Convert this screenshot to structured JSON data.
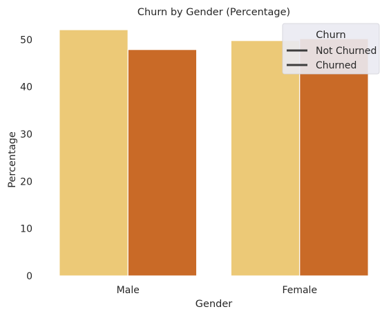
{
  "chart_data": {
    "type": "bar",
    "title": "Churn by Gender (Percentage)",
    "xlabel": "Gender",
    "ylabel": "Percentage",
    "categories": [
      "Male",
      "Female"
    ],
    "ylim": [
      0,
      54
    ],
    "yticks": [
      0,
      10,
      20,
      30,
      40,
      50
    ],
    "grid": false,
    "legend_title": "Churn",
    "legend_position": "top-right",
    "series": [
      {
        "name": "Not Churned",
        "values": [
          52.1,
          49.8
        ],
        "color": "#ecc977"
      },
      {
        "name": "Churned",
        "values": [
          47.9,
          50.2
        ],
        "color": "#c96a27"
      }
    ]
  }
}
